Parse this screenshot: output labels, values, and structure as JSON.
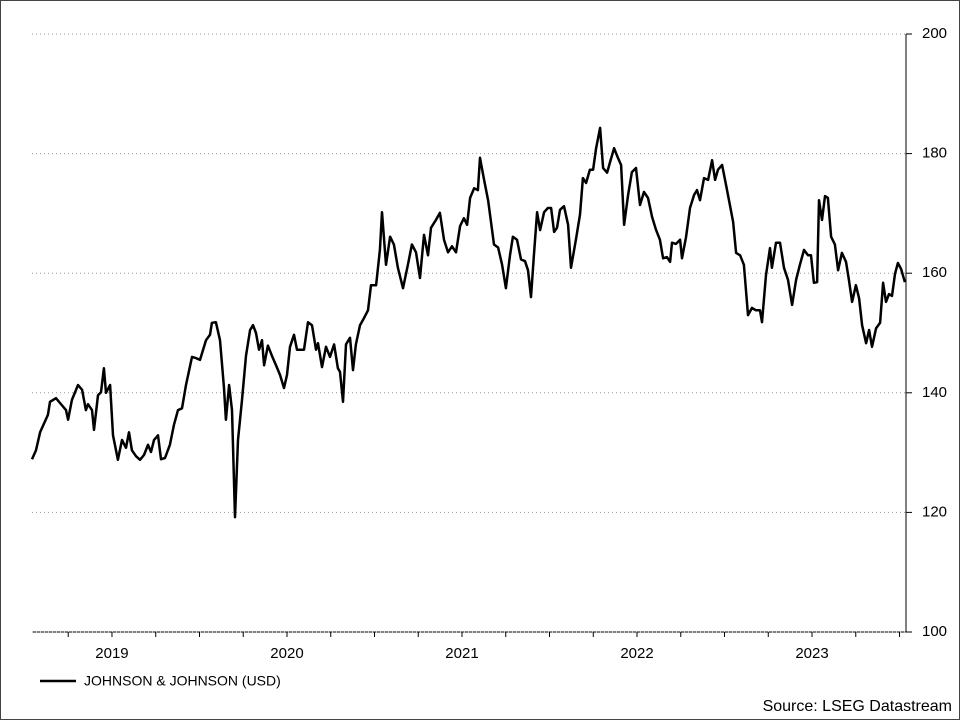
{
  "chart_data": {
    "type": "line",
    "series": [
      {
        "name": "JOHNSON & JOHNSON (USD)",
        "color": "#000000",
        "x": [
          2019.043,
          2019.066,
          2019.089,
          2019.134,
          2019.146,
          2019.18,
          2019.203,
          2019.237,
          2019.249,
          2019.271,
          2019.306,
          2019.329,
          2019.351,
          2019.363,
          2019.386,
          2019.397,
          2019.42,
          2019.437,
          2019.454,
          2019.466,
          2019.489,
          2019.506,
          2019.534,
          2019.557,
          2019.58,
          2019.597,
          2019.614,
          2019.637,
          2019.66,
          2019.683,
          2019.706,
          2019.723,
          2019.74,
          2019.763,
          2019.78,
          2019.803,
          2019.831,
          2019.854,
          2019.877,
          2019.9,
          2019.923,
          2019.957,
          2019.98,
          2020.003,
          2020.037,
          2020.06,
          2020.071,
          2020.094,
          2020.117,
          2020.14,
          2020.151,
          2020.169,
          2020.186,
          2020.203,
          2020.22,
          2020.243,
          2020.266,
          2020.289,
          2020.306,
          2020.323,
          2020.34,
          2020.357,
          2020.369,
          2020.391,
          2020.414,
          2020.437,
          2020.46,
          2020.483,
          2020.5,
          2020.517,
          2020.54,
          2020.557,
          2020.574,
          2020.597,
          2020.62,
          2020.643,
          2020.666,
          2020.677,
          2020.7,
          2020.723,
          2020.746,
          2020.769,
          2020.791,
          2020.803,
          2020.82,
          2020.837,
          2020.86,
          2020.877,
          2020.894,
          2020.917,
          2020.94,
          2020.963,
          2020.98,
          2021.009,
          2021.031,
          2021.043,
          2021.066,
          2021.089,
          2021.111,
          2021.134,
          2021.163,
          2021.191,
          2021.214,
          2021.237,
          2021.26,
          2021.283,
          2021.306,
          2021.323,
          2021.351,
          2021.374,
          2021.397,
          2021.42,
          2021.443,
          2021.466,
          2021.489,
          2021.511,
          2021.529,
          2021.546,
          2021.569,
          2021.591,
          2021.603,
          2021.626,
          2021.649,
          2021.683,
          2021.706,
          2021.729,
          2021.751,
          2021.774,
          2021.791,
          2021.814,
          2021.837,
          2021.86,
          2021.877,
          2021.894,
          2021.911,
          2021.929,
          2021.946,
          2021.969,
          2021.991,
          2022.009,
          2022.026,
          2022.043,
          2022.06,
          2022.083,
          2022.106,
          2022.123,
          2022.151,
          2022.174,
          2022.191,
          2022.209,
          2022.231,
          2022.249,
          2022.266,
          2022.289,
          2022.306,
          2022.329,
          2022.346,
          2022.369,
          2022.391,
          2022.409,
          2022.426,
          2022.449,
          2022.471,
          2022.494,
          2022.517,
          2022.54,
          2022.563,
          2022.586,
          2022.609,
          2022.631,
          2022.649,
          2022.671,
          2022.689,
          2022.7,
          2022.723,
          2022.746,
          2022.757,
          2022.78,
          2022.803,
          2022.826,
          2022.843,
          2022.86,
          2022.883,
          2022.906,
          2022.929,
          2022.946,
          2022.963,
          2022.986,
          2023.009,
          2023.031,
          2023.049,
          2023.066,
          2023.089,
          2023.111,
          2023.134,
          2023.157,
          2023.18,
          2023.203,
          2023.214,
          2023.237,
          2023.26,
          2023.271,
          2023.294,
          2023.317,
          2023.34,
          2023.363,
          2023.386,
          2023.409,
          2023.431,
          2023.454,
          2023.477,
          2023.494,
          2023.511,
          2023.529,
          2023.54,
          2023.557,
          2023.574,
          2023.591,
          2023.609,
          2023.631,
          2023.649,
          2023.671,
          2023.694,
          2023.711,
          2023.729,
          2023.751,
          2023.769,
          2023.786,
          2023.809,
          2023.826,
          2023.843,
          2023.866,
          2023.889,
          2023.906,
          2023.923,
          2023.94,
          2023.957,
          2023.974,
          2023.991,
          2024.009,
          2024.031
        ],
        "values": [
          128.9,
          130.4,
          133.4,
          136.3,
          138.5,
          139.1,
          138.3,
          137.1,
          135.5,
          138.8,
          141.3,
          140.5,
          137.1,
          138.1,
          137.1,
          133.8,
          139.6,
          140.1,
          144.1,
          140.0,
          141.3,
          132.9,
          128.8,
          132.1,
          130.8,
          133.4,
          130.4,
          129.4,
          128.8,
          129.6,
          131.3,
          130.1,
          132.1,
          132.9,
          128.9,
          129.1,
          131.3,
          134.6,
          137.1,
          137.4,
          141.3,
          146.0,
          145.8,
          145.5,
          148.8,
          149.7,
          151.7,
          151.8,
          148.8,
          140.8,
          135.5,
          141.3,
          137.1,
          119.2,
          132.1,
          138.8,
          146.2,
          150.5,
          151.3,
          150.0,
          147.2,
          148.8,
          144.6,
          147.9,
          146.2,
          144.6,
          143.0,
          140.8,
          143.0,
          147.7,
          149.7,
          147.2,
          147.2,
          147.2,
          151.8,
          151.3,
          147.2,
          148.3,
          144.3,
          147.7,
          146.0,
          148.1,
          144.1,
          143.5,
          138.5,
          148.1,
          149.2,
          143.8,
          148.1,
          151.3,
          152.5,
          153.8,
          158.0,
          158.0,
          163.9,
          170.2,
          161.4,
          166.1,
          164.8,
          160.9,
          157.5,
          161.4,
          164.8,
          163.5,
          159.2,
          166.4,
          163.0,
          167.6,
          168.9,
          170.1,
          165.6,
          163.5,
          164.5,
          163.5,
          167.9,
          169.2,
          168.1,
          172.6,
          174.2,
          173.9,
          179.3,
          175.6,
          172.2,
          164.8,
          164.3,
          161.4,
          157.5,
          163.0,
          166.1,
          165.6,
          162.3,
          162.0,
          160.5,
          156.0,
          163.0,
          170.2,
          167.2,
          170.2,
          170.9,
          170.9,
          166.9,
          167.6,
          170.6,
          171.2,
          168.1,
          160.9,
          165.6,
          169.8,
          175.9,
          175.1,
          177.3,
          177.3,
          180.9,
          184.3,
          177.6,
          176.8,
          178.6,
          180.9,
          179.3,
          178.1,
          168.1,
          173.1,
          176.9,
          177.6,
          171.4,
          173.6,
          172.6,
          169.4,
          167.2,
          165.6,
          162.5,
          162.7,
          161.9,
          165.1,
          164.9,
          165.6,
          162.5,
          166.0,
          170.9,
          173.1,
          173.9,
          172.2,
          175.9,
          175.6,
          178.9,
          175.6,
          177.3,
          178.1,
          174.7,
          171.4,
          168.6,
          163.4,
          163.0,
          161.4,
          153.0,
          154.2,
          153.8,
          153.8,
          151.8,
          159.7,
          164.2,
          160.9,
          165.1,
          165.1,
          160.9,
          158.9,
          154.7,
          158.9,
          161.4,
          163.9,
          163.0,
          163.0,
          158.4,
          158.5,
          172.2,
          168.9,
          172.9,
          172.6,
          166.1,
          164.8,
          160.5,
          163.4,
          161.9,
          158.9,
          155.2,
          158.0,
          155.8,
          151.3,
          148.3,
          150.5,
          147.7,
          150.8,
          151.7,
          158.4,
          155.2,
          156.5,
          156.2,
          159.9,
          161.7,
          160.7,
          158.5
        ]
      }
    ],
    "xlim": [
      2019.043,
      2024.037
    ],
    "xticks": [
      2019.25,
      2019.5,
      2019.75,
      2020,
      2020.25,
      2020.5,
      2020.75,
      2021,
      2021.25,
      2021.5,
      2021.75,
      2022,
      2022.25,
      2022.5,
      2022.75,
      2023,
      2023.25,
      2023.5,
      2023.75,
      2024
    ],
    "xlabels": [
      {
        "value": 2019.5,
        "label": "2019"
      },
      {
        "value": 2020.5,
        "label": "2020"
      },
      {
        "value": 2021.5,
        "label": "2021"
      },
      {
        "value": 2022.5,
        "label": "2022"
      },
      {
        "value": 2023.5,
        "label": "2023"
      }
    ],
    "ylim": [
      100,
      200
    ],
    "yticks": [
      100,
      120,
      140,
      160,
      180,
      200
    ],
    "grid": true,
    "source": "Source: LSEG Datastream"
  }
}
